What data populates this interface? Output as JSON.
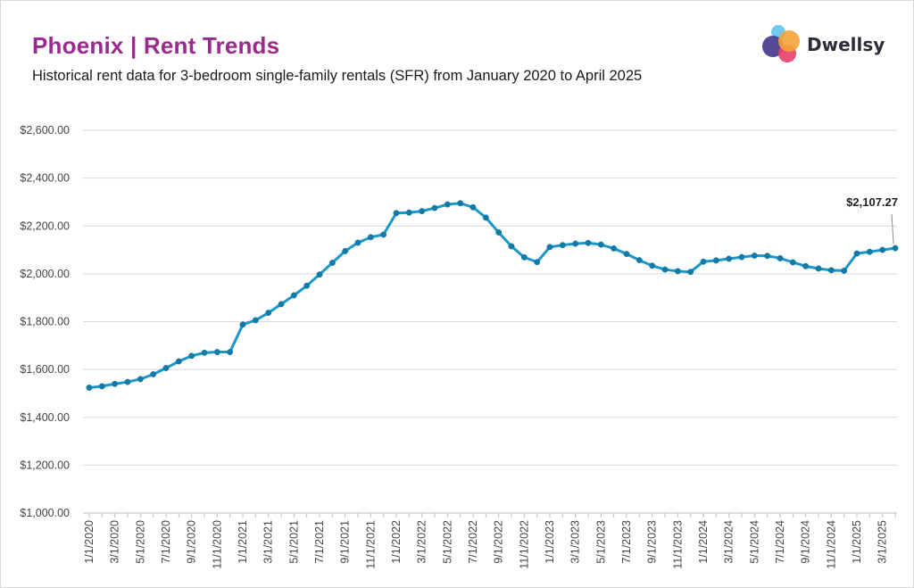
{
  "header": {
    "title": "Phoenix | Rent Trends",
    "subtitle": "Historical rent data for 3-bedroom single-family rentals (SFR) from January 2020 to April 2025"
  },
  "logo": {
    "text": "Dwellsy",
    "icon": "dwellsy-logo-icon"
  },
  "colors": {
    "line": "#1b97c9",
    "marker": "#127aa6",
    "title": "#9b2a8f",
    "grid": "#d9d9d9"
  },
  "chart_data": {
    "type": "line",
    "title": "Phoenix | Rent Trends",
    "subtitle": "Historical rent data for 3-bedroom single-family rentals (SFR) from January 2020 to April 2025",
    "ylim": [
      1000,
      2600
    ],
    "yticks": [
      1000,
      1200,
      1400,
      1600,
      1800,
      2000,
      2200,
      2400,
      2600
    ],
    "ytick_labels": [
      "$1,000.00",
      "$1,200.00",
      "$1,400.00",
      "$1,600.00",
      "$1,800.00",
      "$2,000.00",
      "$2,200.00",
      "$2,400.00",
      "$2,600.00"
    ],
    "xtick_labels": [
      "1/1/2020",
      "3/1/2020",
      "5/1/2020",
      "7/1/2020",
      "9/1/2020",
      "11/1/2020",
      "1/1/2021",
      "3/1/2021",
      "5/1/2021",
      "7/1/2021",
      "9/1/2021",
      "11/1/2021",
      "1/1/2022",
      "3/1/2022",
      "5/1/2022",
      "7/1/2022",
      "9/1/2022",
      "11/1/2022",
      "1/1/2023",
      "3/1/2023",
      "5/1/2023",
      "7/1/2023",
      "9/1/2023",
      "11/1/2023",
      "1/1/2024",
      "3/1/2024",
      "5/1/2024",
      "7/1/2024",
      "9/1/2024",
      "11/1/2024",
      "1/1/2025",
      "3/1/2025"
    ],
    "grid": true,
    "series": [
      {
        "x": [
          "1/1/2020",
          "2/1/2020",
          "3/1/2020",
          "4/1/2020",
          "5/1/2020",
          "6/1/2020",
          "7/1/2020",
          "8/1/2020",
          "9/1/2020",
          "10/1/2020",
          "11/1/2020",
          "12/1/2020",
          "1/1/2021",
          "2/1/2021",
          "3/1/2021",
          "4/1/2021",
          "5/1/2021",
          "6/1/2021",
          "7/1/2021",
          "8/1/2021",
          "9/1/2021",
          "10/1/2021",
          "11/1/2021",
          "12/1/2021",
          "1/1/2022",
          "2/1/2022",
          "3/1/2022",
          "4/1/2022",
          "5/1/2022",
          "6/1/2022",
          "7/1/2022",
          "8/1/2022",
          "9/1/2022",
          "10/1/2022",
          "11/1/2022",
          "12/1/2022",
          "1/1/2023",
          "2/1/2023",
          "3/1/2023",
          "4/1/2023",
          "5/1/2023",
          "6/1/2023",
          "7/1/2023",
          "8/1/2023",
          "9/1/2023",
          "10/1/2023",
          "11/1/2023",
          "12/1/2023",
          "1/1/2024",
          "2/1/2024",
          "3/1/2024",
          "4/1/2024",
          "5/1/2024",
          "6/1/2024",
          "7/1/2024",
          "8/1/2024",
          "9/1/2024",
          "10/1/2024",
          "11/1/2024",
          "12/1/2024",
          "1/1/2025",
          "2/1/2025",
          "3/1/2025",
          "4/1/2025"
        ],
        "values": [
          1524,
          1530,
          1540,
          1548,
          1560,
          1580,
          1606,
          1634,
          1657,
          1670,
          1673,
          1673,
          1788,
          1806,
          1837,
          1873,
          1910,
          1950,
          1997,
          2046,
          2095,
          2130,
          2153,
          2164,
          2254,
          2256,
          2262,
          2275,
          2290,
          2295,
          2278,
          2235,
          2173,
          2115,
          2069,
          2049,
          2112,
          2120,
          2126,
          2129,
          2122,
          2106,
          2083,
          2057,
          2034,
          2018,
          2011,
          2008,
          2051,
          2056,
          2063,
          2070,
          2076,
          2075,
          2065,
          2048,
          2032,
          2022,
          2015,
          2013,
          2085,
          2092,
          2100,
          2107.27
        ]
      }
    ],
    "annotations": [
      {
        "x": "4/1/2025",
        "text": "$2,107.27"
      }
    ]
  }
}
